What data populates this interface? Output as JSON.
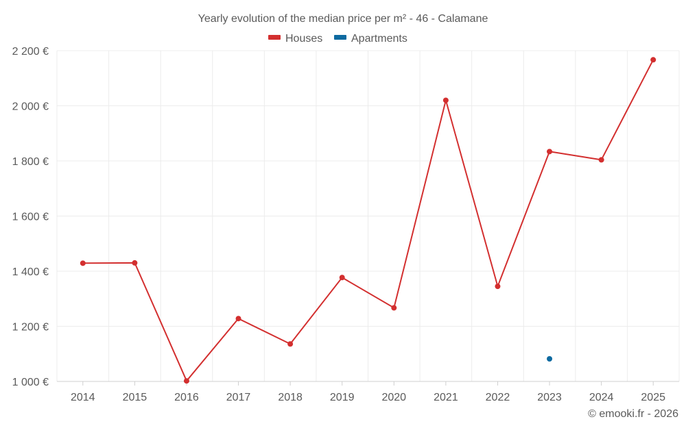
{
  "chart_data": {
    "type": "line",
    "title": "Yearly evolution of the median price per m² - 46 - Calamane",
    "categories": [
      "2014",
      "2015",
      "2016",
      "2017",
      "2018",
      "2019",
      "2020",
      "2021",
      "2022",
      "2023",
      "2024",
      "2025"
    ],
    "y_tick_labels": [
      "1 000 €",
      "1 200 €",
      "1 400 €",
      "1 600 €",
      "1 800 €",
      "2 000 €",
      "2 200 €"
    ],
    "y_ticks": [
      1000,
      1200,
      1400,
      1600,
      1800,
      2000,
      2200
    ],
    "ylim": [
      1000,
      2200
    ],
    "grid": true,
    "legend_position": "top-center",
    "series": [
      {
        "name": "Houses",
        "color": "#d32f2f",
        "values": [
          1429,
          1430,
          1002,
          1228,
          1136,
          1377,
          1267,
          2020,
          1345,
          1834,
          1804,
          2167
        ]
      },
      {
        "name": "Apartments",
        "color": "#0d6aa0",
        "values": [
          null,
          null,
          null,
          null,
          null,
          null,
          null,
          null,
          null,
          1082,
          null,
          null
        ]
      }
    ],
    "credit": "© emooki.fr - 2026"
  }
}
